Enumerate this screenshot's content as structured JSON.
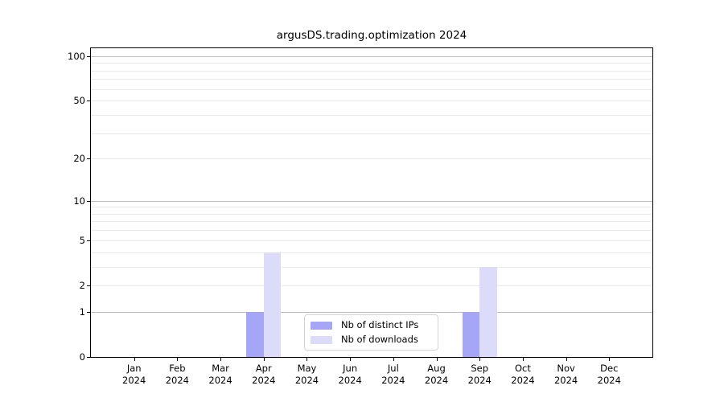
{
  "chart_data": {
    "type": "bar",
    "title": "argusDS.trading.optimization 2024",
    "categories": [
      "Jan 2024",
      "Feb 2024",
      "Mar 2024",
      "Apr 2024",
      "May 2024",
      "Jun 2024",
      "Jul 2024",
      "Aug 2024",
      "Sep 2024",
      "Oct 2024",
      "Nov 2024",
      "Dec 2024"
    ],
    "series": [
      {
        "name": "Nb of distinct IPs",
        "color": "#a6a6f7",
        "values": [
          0,
          0,
          0,
          1,
          0,
          0,
          0,
          0,
          1,
          0,
          0,
          0
        ]
      },
      {
        "name": "Nb of downloads",
        "color": "#dcdcfa",
        "values": [
          0,
          0,
          0,
          4,
          0,
          0,
          0,
          0,
          3,
          0,
          0,
          0
        ]
      }
    ],
    "yscale": "log1p",
    "ylim": [
      0,
      113
    ],
    "yticks": [
      0,
      1,
      2,
      5,
      10,
      20,
      50,
      100
    ],
    "gridlines_major": [
      1,
      10,
      100
    ],
    "gridlines_minor": [
      2,
      3,
      4,
      5,
      6,
      7,
      8,
      9,
      20,
      30,
      40,
      50,
      60,
      70,
      80,
      90
    ],
    "grid": true,
    "legend_position": "lower center",
    "xlabel": "",
    "ylabel": ""
  },
  "colors": {
    "bar_distinct_ips": "#a6a6f7",
    "bar_downloads": "#dcdcfa",
    "grid_major": "#bdbdbd",
    "grid_minor": "#eaeaea",
    "axis": "#000000",
    "background": "#ffffff",
    "legend_border": "#d4d4d4"
  }
}
